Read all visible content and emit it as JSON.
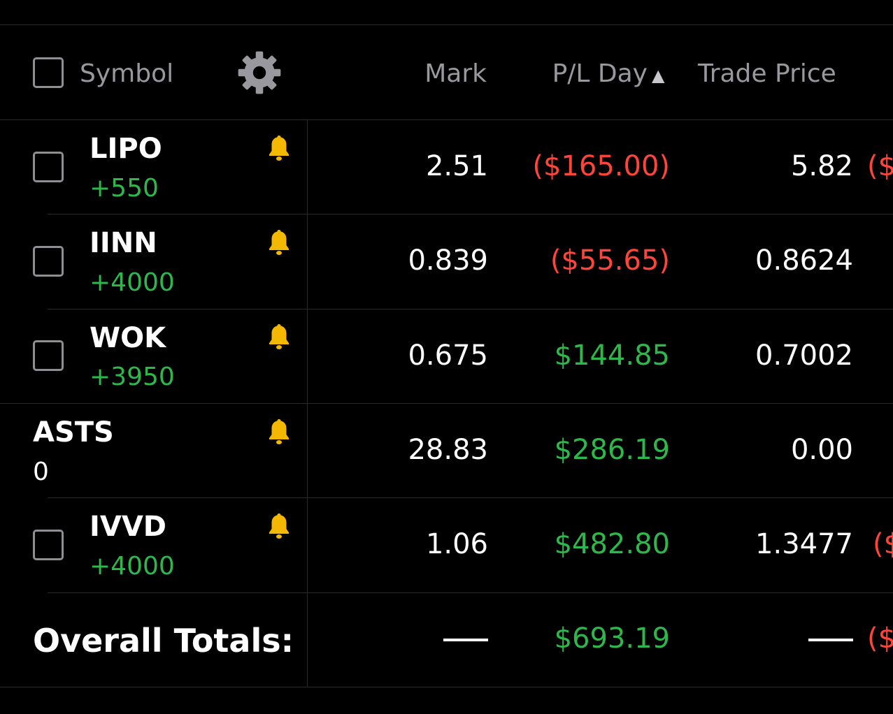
{
  "header": {
    "symbol_label": "Symbol",
    "settings_icon": "gear-icon",
    "mark_label": "Mark",
    "pl_day_label": "P/L Day",
    "sort_indicator": "▲",
    "trade_price_label": "Trade Price"
  },
  "rows": [
    {
      "symbol": "LIPO",
      "qty": "+550",
      "mark": "2.51",
      "pl_day": "($165.00)",
      "pl_sign": "negative",
      "trade_price": "5.82",
      "clipped": "($"
    },
    {
      "symbol": "IINN",
      "qty": "+4000",
      "mark": "0.839",
      "pl_day": "($55.65)",
      "pl_sign": "negative",
      "trade_price": "0.8624",
      "clipped": ""
    },
    {
      "symbol": "WOK",
      "qty": "+3950",
      "mark": "0.675",
      "pl_day": "$144.85",
      "pl_sign": "positive",
      "trade_price": "0.7002",
      "clipped": ""
    },
    {
      "symbol": "ASTS",
      "qty": "0",
      "mark": "28.83",
      "pl_day": "$286.19",
      "pl_sign": "positive",
      "trade_price": "0.00",
      "clipped": ""
    },
    {
      "symbol": "IVVD",
      "qty": "+4000",
      "mark": "1.06",
      "pl_day": "$482.80",
      "pl_sign": "positive",
      "trade_price": "1.3477",
      "clipped": "($"
    }
  ],
  "totals": {
    "label": "Overall Totals:",
    "mark": "—",
    "pl_day": "$693.19",
    "trade_price": "—",
    "clipped": "($"
  },
  "colors": {
    "background": "#000000",
    "positive": "#2eb84b",
    "negative": "#ff453a",
    "bell": "#f5b800",
    "header_text": "#98989e"
  }
}
